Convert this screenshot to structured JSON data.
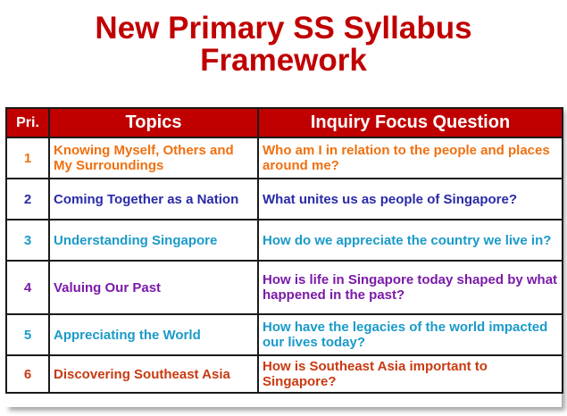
{
  "title": {
    "line1": "New Primary SS Syllabus",
    "line2": "Framework"
  },
  "table": {
    "headers": [
      "Pri.",
      "Topics",
      "Inquiry Focus Question"
    ],
    "rows": [
      {
        "pri": "1",
        "topic": "Knowing Myself, Others and My Surroundings",
        "question": "Who am I in relation to the people and places around me?",
        "color": "#f07010"
      },
      {
        "pri": "2",
        "topic": "Coming Together as a Nation",
        "question": "What unites us as people of Singapore?",
        "color": "#2a2aa8"
      },
      {
        "pri": "3",
        "topic": "Understanding Singapore",
        "question": "How do we appreciate the country we live in?",
        "color": "#1a9ac8"
      },
      {
        "pri": "4",
        "topic": "Valuing Our Past",
        "question": "How is life in Singapore today shaped by what happened in the past?",
        "color": "#7a1aa8"
      },
      {
        "pri": "5",
        "topic": "Appreciating the World",
        "question": "How have the legacies of the world impacted our lives today?",
        "color": "#1a9ac8"
      },
      {
        "pri": "6",
        "topic": "Discovering Southeast Asia",
        "question": "How is Southeast Asia important to Singapore?",
        "color": "#c83a10"
      }
    ]
  },
  "colors": {
    "title": "#c00000",
    "header_bg": "#c00000",
    "header_text": "#ffffff"
  }
}
